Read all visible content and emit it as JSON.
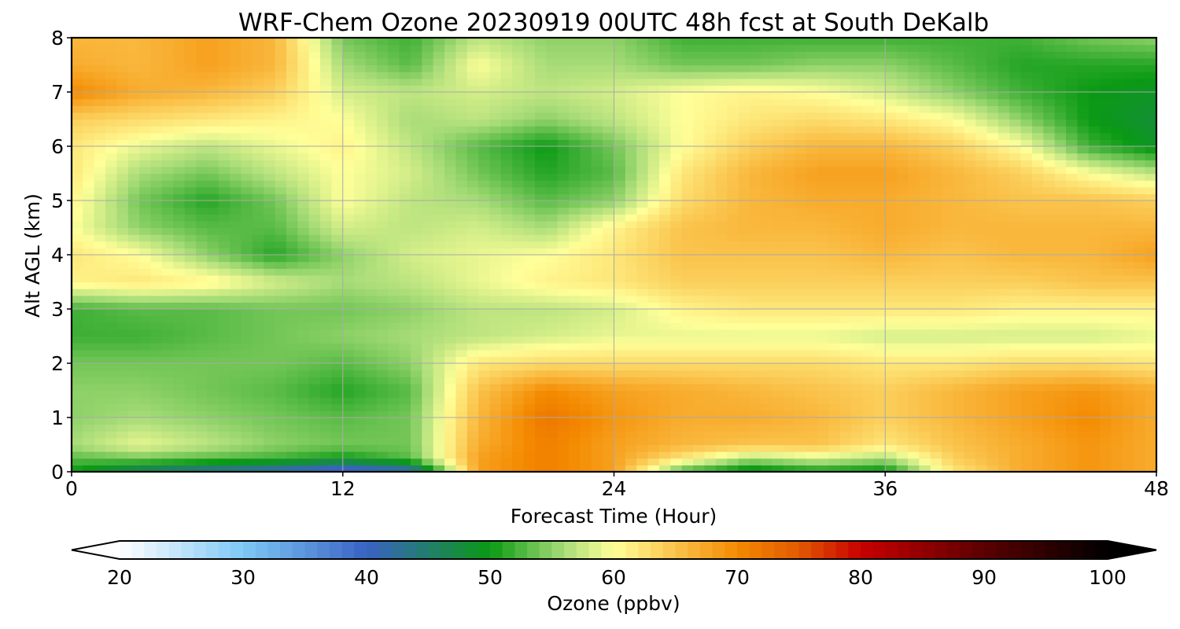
{
  "chart_data": {
    "type": "heatmap",
    "title": "WRF-Chem Ozone  20230919 00UTC 48h fcst at South DeKalb",
    "xlabel": "Forecast Time (Hour)",
    "ylabel": "Alt AGL (km)",
    "xlim": [
      0,
      48
    ],
    "ylim": [
      0,
      8
    ],
    "x_ticks": [
      0,
      12,
      24,
      36,
      48
    ],
    "y_ticks": [
      0,
      1,
      2,
      3,
      4,
      5,
      6,
      7,
      8
    ],
    "grid": true,
    "x": [
      0,
      3,
      6,
      9,
      12,
      15,
      18,
      21,
      24,
      27,
      30,
      33,
      36,
      39,
      42,
      45,
      48
    ],
    "y": [
      0,
      0.25,
      0.5,
      1,
      1.5,
      2,
      2.5,
      3,
      3.5,
      4,
      4.5,
      5,
      5.5,
      6,
      6.5,
      7,
      7.5,
      8
    ],
    "z": [
      [
        50,
        45,
        42,
        40,
        37,
        40,
        68,
        71,
        68,
        52,
        48,
        50,
        49,
        62,
        67,
        69,
        67
      ],
      [
        53,
        54,
        53,
        52,
        50,
        53,
        68,
        71,
        68,
        62,
        56,
        58,
        56,
        64,
        67,
        69,
        67
      ],
      [
        56,
        59,
        57,
        55,
        54,
        54,
        67,
        71,
        68,
        66,
        65,
        65,
        62,
        65,
        67,
        69,
        67
      ],
      [
        55,
        56,
        55,
        54,
        53,
        54,
        66,
        72,
        69,
        67,
        67,
        66,
        64,
        66,
        68,
        70,
        67
      ],
      [
        55,
        55,
        54,
        53,
        51,
        53,
        65,
        70,
        68,
        67,
        66,
        65,
        64,
        66,
        68,
        69,
        67
      ],
      [
        54,
        54,
        54,
        54,
        53,
        55,
        62,
        63,
        63,
        63,
        63,
        63,
        62,
        62,
        63,
        63,
        62
      ],
      [
        52,
        52,
        53,
        54,
        55,
        56,
        57,
        58,
        59,
        59,
        59,
        59,
        58,
        58,
        58,
        58,
        59
      ],
      [
        52,
        53,
        53,
        54,
        54,
        55,
        57,
        57,
        58,
        61,
        62,
        62,
        62,
        62,
        61,
        61,
        61
      ],
      [
        61,
        62,
        61,
        58,
        56,
        57,
        59,
        61,
        62,
        64,
        64,
        64,
        64,
        64,
        64,
        65,
        65
      ],
      [
        62,
        60,
        55,
        51,
        55,
        58,
        59,
        60,
        62,
        65,
        65,
        65,
        66,
        65,
        66,
        66,
        68
      ],
      [
        60,
        55,
        53,
        53,
        58,
        57,
        58,
        56,
        61,
        65,
        66,
        66,
        67,
        66,
        66,
        66,
        66
      ],
      [
        61,
        54,
        51,
        54,
        60,
        57,
        56,
        53,
        55,
        63,
        66,
        67,
        67,
        66,
        65,
        65,
        64
      ],
      [
        62,
        56,
        54,
        57,
        60,
        58,
        54,
        51,
        53,
        62,
        66,
        68,
        68,
        66,
        64,
        60,
        57
      ],
      [
        62,
        59,
        57,
        59,
        61,
        57,
        53,
        50,
        54,
        60,
        64,
        66,
        66,
        64,
        60,
        52,
        49
      ],
      [
        64,
        63,
        62,
        61,
        60,
        56,
        57,
        55,
        57,
        60,
        62,
        63,
        62,
        60,
        55,
        50,
        48
      ],
      [
        70,
        67,
        66,
        64,
        58,
        57,
        58,
        57,
        58,
        60,
        61,
        60,
        58,
        55,
        52,
        50,
        49
      ],
      [
        67,
        66,
        68,
        66,
        56,
        53,
        60,
        56,
        56,
        54,
        54,
        55,
        55,
        53,
        51,
        51,
        51
      ],
      [
        66,
        66,
        68,
        66,
        54,
        52,
        57,
        55,
        55,
        52,
        52,
        52,
        52,
        52,
        52,
        54,
        55
      ]
    ],
    "colorbar": {
      "label": "Ozone  (ppbv)",
      "min": 20,
      "max": 100,
      "ticks": [
        20,
        30,
        40,
        50,
        60,
        70,
        80,
        90,
        100
      ],
      "extend": "both",
      "stops": [
        {
          "v": 20,
          "c": "#ffffff"
        },
        {
          "v": 30,
          "c": "#7ec8f5"
        },
        {
          "v": 40,
          "c": "#3a62c4"
        },
        {
          "v": 50,
          "c": "#0a9a14"
        },
        {
          "v": 56,
          "c": "#a8dc78"
        },
        {
          "v": 60,
          "c": "#ffff99"
        },
        {
          "v": 66,
          "c": "#f9b73c"
        },
        {
          "v": 70,
          "c": "#f48a00"
        },
        {
          "v": 75,
          "c": "#e25a00"
        },
        {
          "v": 80,
          "c": "#c80000"
        },
        {
          "v": 90,
          "c": "#5a0000"
        },
        {
          "v": 100,
          "c": "#000000"
        }
      ]
    }
  }
}
